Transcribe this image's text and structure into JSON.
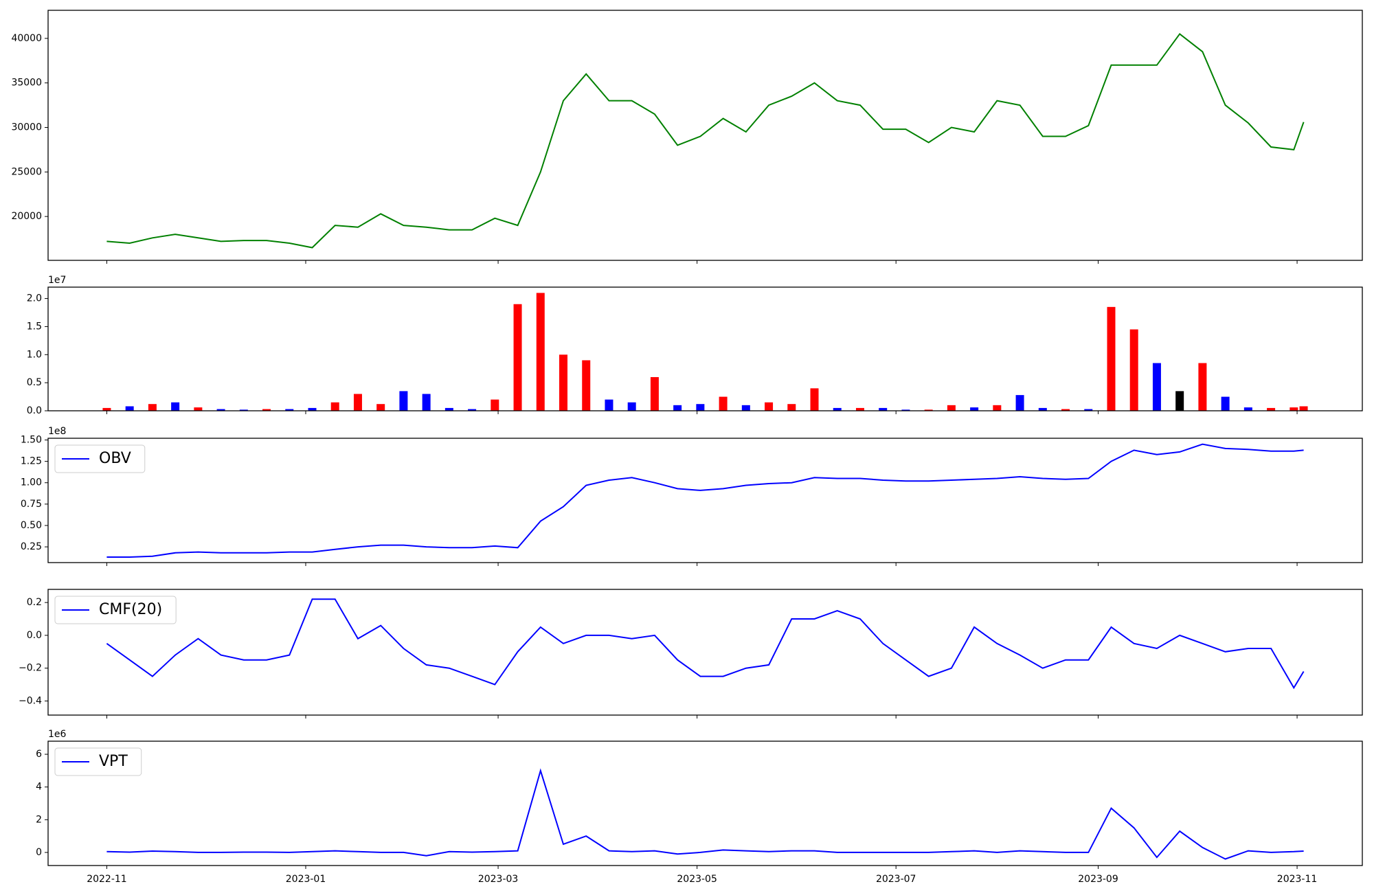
{
  "x": [
    "2022-11-01",
    "2022-11-08",
    "2022-11-15",
    "2022-11-22",
    "2022-11-29",
    "2022-12-06",
    "2022-12-13",
    "2022-12-20",
    "2022-12-27",
    "2023-01-03",
    "2023-01-10",
    "2023-01-17",
    "2023-01-24",
    "2023-01-31",
    "2023-02-07",
    "2023-02-14",
    "2023-02-21",
    "2023-02-28",
    "2023-03-07",
    "2023-03-14",
    "2023-03-21",
    "2023-03-28",
    "2023-04-04",
    "2023-04-11",
    "2023-04-18",
    "2023-04-25",
    "2023-05-02",
    "2023-05-09",
    "2023-05-16",
    "2023-05-23",
    "2023-05-30",
    "2023-06-06",
    "2023-06-13",
    "2023-06-20",
    "2023-06-27",
    "2023-07-04",
    "2023-07-11",
    "2023-07-18",
    "2023-07-25",
    "2023-08-01",
    "2023-08-08",
    "2023-08-15",
    "2023-08-22",
    "2023-08-29",
    "2023-09-05",
    "2023-09-12",
    "2023-09-19",
    "2023-09-26",
    "2023-10-03",
    "2023-10-10",
    "2023-10-17",
    "2023-10-24",
    "2023-10-31",
    "2023-11-03"
  ],
  "xlim": [
    "2022-10-14",
    "2023-11-21"
  ],
  "xticks": [
    {
      "value": "2022-11-01",
      "label": "2022-11"
    },
    {
      "value": "2023-01-01",
      "label": "2023-01"
    },
    {
      "value": "2023-03-01",
      "label": "2023-03"
    },
    {
      "value": "2023-05-01",
      "label": "2023-05"
    },
    {
      "value": "2023-07-01",
      "label": "2023-07"
    },
    {
      "value": "2023-09-01",
      "label": "2023-09"
    },
    {
      "value": "2023-11-01",
      "label": "2023-11"
    }
  ],
  "chart_data": [
    {
      "type": "line",
      "ylim": [
        15074,
        43153
      ],
      "yticks": [
        20000,
        25000,
        30000,
        35000,
        40000
      ],
      "series": [
        {
          "color": "#008000",
          "values": [
            17200,
            17000,
            17600,
            18000,
            17600,
            17200,
            17300,
            17300,
            17000,
            16500,
            19000,
            18800,
            20300,
            19000,
            18800,
            18500,
            18500,
            19800,
            19000,
            25000,
            33000,
            36000,
            33000,
            33000,
            31500,
            28000,
            29000,
            31000,
            29500,
            32500,
            33500,
            35000,
            33000,
            32500,
            29800,
            29800,
            28300,
            30000,
            29500,
            33000,
            32500,
            29000,
            29000,
            30200,
            37000,
            37000,
            37000,
            40500,
            38500,
            32500,
            30500,
            27800,
            27500,
            30600
          ]
        }
      ]
    },
    {
      "type": "bar",
      "offset_label": "1e7",
      "ylim": [
        0,
        22030000
      ],
      "yticks": [
        {
          "value": 0,
          "label": "0.0"
        },
        {
          "value": 5000000,
          "label": "0.5"
        },
        {
          "value": 10000000,
          "label": "1.0"
        },
        {
          "value": 15000000,
          "label": "1.5"
        },
        {
          "value": 20000000,
          "label": "2.0"
        }
      ],
      "series": [
        {
          "values": [
            500000,
            800000,
            1200000,
            1500000,
            600000,
            300000,
            200000,
            300000,
            300000,
            500000,
            1500000,
            3000000,
            1200000,
            3500000,
            3000000,
            500000,
            300000,
            2000000,
            19000000,
            21000000,
            10000000,
            9000000,
            2000000,
            1500000,
            6000000,
            1000000,
            1200000,
            2500000,
            1000000,
            1500000,
            1200000,
            4000000,
            500000,
            500000,
            500000,
            200000,
            200000,
            1000000,
            600000,
            1000000,
            2800000,
            500000,
            300000,
            300000,
            18500000,
            14500000,
            8500000,
            3500000,
            8500000,
            2500000,
            600000,
            500000,
            600000,
            800000
          ],
          "colors": [
            "#ff0000",
            "#0000ff",
            "#ff0000",
            "#0000ff",
            "#ff0000",
            "#0000ff",
            "#0000ff",
            "#ff0000",
            "#0000ff",
            "#0000ff",
            "#ff0000",
            "#ff0000",
            "#ff0000",
            "#0000ff",
            "#0000ff",
            "#0000ff",
            "#0000ff",
            "#ff0000",
            "#ff0000",
            "#ff0000",
            "#ff0000",
            "#ff0000",
            "#0000ff",
            "#0000ff",
            "#ff0000",
            "#0000ff",
            "#0000ff",
            "#ff0000",
            "#0000ff",
            "#ff0000",
            "#ff0000",
            "#ff0000",
            "#0000ff",
            "#ff0000",
            "#0000ff",
            "#0000ff",
            "#ff0000",
            "#ff0000",
            "#0000ff",
            "#ff0000",
            "#0000ff",
            "#0000ff",
            "#ff0000",
            "#0000ff",
            "#ff0000",
            "#ff0000",
            "#0000ff",
            "#000000",
            "#ff0000",
            "#0000ff",
            "#0000ff",
            "#ff0000",
            "#ff0000",
            "#ff0000"
          ]
        }
      ]
    },
    {
      "type": "line",
      "offset_label": "1e8",
      "legend": "upper left",
      "ylim": [
        6600000,
        152000000
      ],
      "yticks": [
        {
          "value": 25000000,
          "label": "0.25"
        },
        {
          "value": 50000000,
          "label": "0.50"
        },
        {
          "value": 75000000,
          "label": "0.75"
        },
        {
          "value": 100000000,
          "label": "1.00"
        },
        {
          "value": 125000000,
          "label": "1.25"
        },
        {
          "value": 150000000,
          "label": "1.50"
        }
      ],
      "series": [
        {
          "name": "OBV",
          "color": "#0000ff",
          "values": [
            13000000,
            13000000,
            14000000,
            18000000,
            19000000,
            18000000,
            18000000,
            18000000,
            19000000,
            19000000,
            22000000,
            25000000,
            27000000,
            27000000,
            25000000,
            24000000,
            24000000,
            26000000,
            24000000,
            55000000,
            72000000,
            97000000,
            103000000,
            106000000,
            100000000,
            93000000,
            91000000,
            93000000,
            97000000,
            99000000,
            100000000,
            106000000,
            105000000,
            105000000,
            103000000,
            102000000,
            102000000,
            103000000,
            104000000,
            105000000,
            107000000,
            105000000,
            104000000,
            105000000,
            125000000,
            138000000,
            133000000,
            136000000,
            145000000,
            140000000,
            139000000,
            137000000,
            137000000,
            138000000
          ]
        }
      ]
    },
    {
      "type": "line",
      "legend": "upper left",
      "ylim": [
        -0.486,
        0.28
      ],
      "yticks": [
        {
          "value": -0.4,
          "label": "−0.4"
        },
        {
          "value": -0.2,
          "label": "−0.2"
        },
        {
          "value": 0,
          "label": "0.0"
        },
        0.2
      ],
      "series": [
        {
          "name": "CMF(20)",
          "color": "#0000ff",
          "values": [
            -0.05,
            -0.15,
            -0.25,
            -0.12,
            -0.02,
            -0.12,
            -0.15,
            -0.15,
            -0.12,
            0.22,
            0.22,
            -0.02,
            0.06,
            -0.08,
            -0.18,
            -0.2,
            -0.25,
            -0.3,
            -0.1,
            0.05,
            -0.05,
            0.0,
            0.0,
            -0.02,
            0.0,
            -0.15,
            -0.25,
            -0.25,
            -0.2,
            -0.18,
            0.1,
            0.1,
            0.15,
            0.1,
            -0.05,
            -0.15,
            -0.25,
            -0.2,
            0.05,
            -0.05,
            -0.12,
            -0.2,
            -0.15,
            -0.15,
            0.05,
            -0.05,
            -0.08,
            0.0,
            -0.05,
            -0.1,
            -0.08,
            -0.08,
            -0.32,
            -0.22
          ]
        }
      ]
    },
    {
      "type": "line",
      "offset_label": "1e6",
      "legend": "upper left",
      "ylim": [
        -800000,
        6800000
      ],
      "yticks": [
        0,
        {
          "value": 2000000,
          "label": "2"
        },
        {
          "value": 4000000,
          "label": "4"
        },
        {
          "value": 6000000,
          "label": "6"
        }
      ],
      "series": [
        {
          "name": "VPT",
          "color": "#0000ff",
          "values": [
            50000,
            20000,
            80000,
            50000,
            0,
            0,
            20000,
            20000,
            0,
            50000,
            100000,
            50000,
            0,
            0,
            -200000,
            50000,
            20000,
            50000,
            100000,
            5000000,
            500000,
            1000000,
            100000,
            50000,
            100000,
            -100000,
            0,
            150000,
            100000,
            50000,
            100000,
            100000,
            0,
            0,
            0,
            0,
            0,
            50000,
            100000,
            0,
            100000,
            50000,
            0,
            0,
            2700000,
            1500000,
            -300000,
            1300000,
            300000,
            -400000,
            100000,
            0,
            50000,
            80000
          ]
        }
      ]
    }
  ]
}
